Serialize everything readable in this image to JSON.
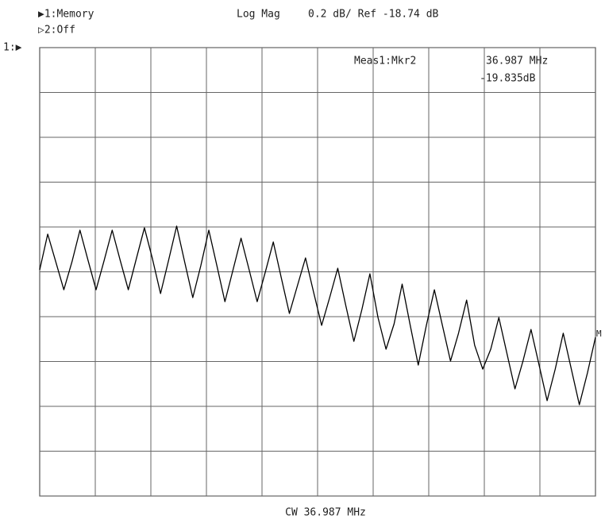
{
  "chart_data": {
    "type": "line",
    "trace_labels": [
      "▶1:Memory",
      "▷2:Off"
    ],
    "title": "Log Mag",
    "scale": "0.2 dB/ Ref -18.74 dB",
    "reference_marker": "1:▶",
    "marker_readout": {
      "label": "Meas1:Mkr2",
      "frequency": "36.987 MHz",
      "value": "-19.835dB"
    },
    "footer": "CW 36.987 MHz",
    "end_marker": "M",
    "color": "#000000",
    "ylim": [
      -20.74,
      -18.74
    ],
    "yticks": [
      -20.74,
      -20.54,
      -20.34,
      -20.14,
      -19.94,
      -19.74,
      -19.54,
      -19.34,
      -19.14,
      -18.94,
      -18.74
    ],
    "grid": true,
    "values": [
      -19.731,
      -19.572,
      -19.696,
      -19.82,
      -19.696,
      -19.554,
      -19.689,
      -19.82,
      -19.689,
      -19.554,
      -19.689,
      -19.82,
      -19.682,
      -19.544,
      -19.682,
      -19.837,
      -19.689,
      -19.536,
      -19.696,
      -19.855,
      -19.713,
      -19.554,
      -19.713,
      -19.873,
      -19.731,
      -19.59,
      -19.731,
      -19.873,
      -19.742,
      -19.607,
      -19.767,
      -19.926,
      -19.802,
      -19.678,
      -19.83,
      -19.979,
      -19.855,
      -19.724,
      -19.89,
      -20.05,
      -19.908,
      -19.749,
      -19.944,
      -20.085,
      -19.972,
      -19.795,
      -19.979,
      -20.156,
      -19.979,
      -19.82,
      -19.979,
      -20.138,
      -20.014,
      -19.866,
      -20.067,
      -20.174,
      -20.085,
      -19.944,
      -20.103,
      -20.262,
      -20.138,
      -19.997,
      -20.156,
      -20.315,
      -20.174,
      -20.014,
      -20.174,
      -20.333,
      -20.191,
      -20.032
    ]
  }
}
